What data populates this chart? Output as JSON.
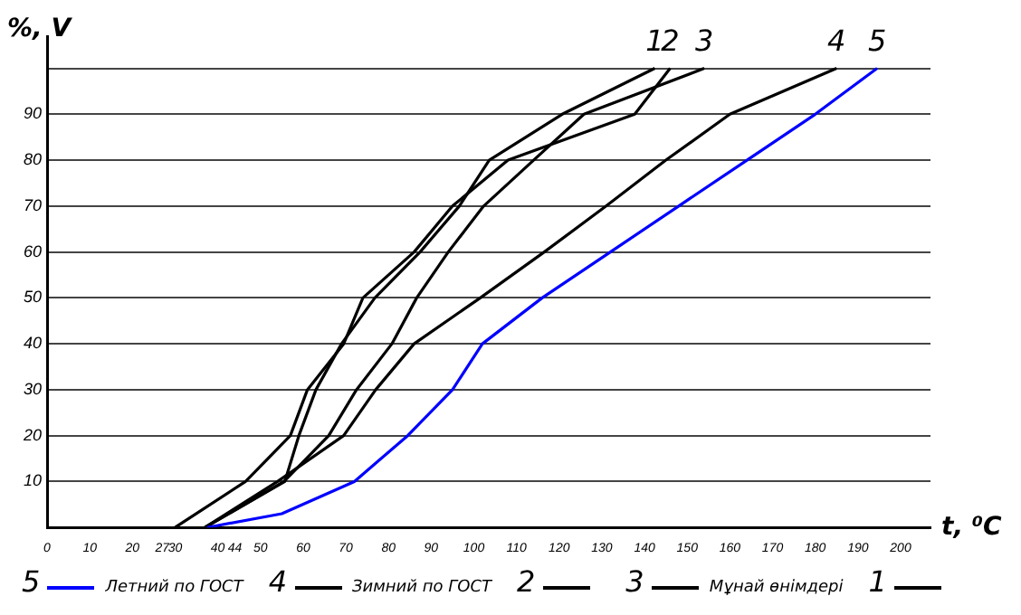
{
  "chart_data": {
    "type": "line",
    "xlabel": "t, ⁰C",
    "ylabel": "%, V",
    "xlim": [
      0,
      207
    ],
    "ylim": [
      0,
      107
    ],
    "xticks": [
      0,
      10,
      20,
      27,
      30,
      40,
      44,
      50,
      60,
      70,
      80,
      90,
      100,
      110,
      120,
      130,
      140,
      150,
      160,
      170,
      180,
      190,
      200
    ],
    "yticks": [
      10,
      20,
      30,
      40,
      50,
      60,
      70,
      80,
      90,
      {
        "value": 100,
        "label": null
      }
    ],
    "grid": "y",
    "legend": "bottom",
    "line_style": "solid",
    "marker": "none",
    "series": [
      {
        "name": "Летний по ГОСТ",
        "color": "#0000ff",
        "x": [
          37.5,
          55,
          72,
          84.5,
          95,
          102,
          116,
          132,
          148,
          164,
          180,
          194.5
        ],
        "values": [
          0,
          3,
          10,
          20,
          30,
          40,
          50,
          60,
          70,
          80,
          90,
          100
        ]
      },
      {
        "name": "Зимний по ГОСТ",
        "color": "#000000",
        "x": [
          37,
          54,
          69.5,
          77,
          86,
          101.5,
          116.5,
          131,
          145,
          160,
          185
        ],
        "values": [
          0,
          10,
          20,
          30,
          40,
          50,
          60,
          70,
          80,
          90,
          100
        ]
      },
      {
        "color": "#000000",
        "x": [
          30,
          46.5,
          57,
          61,
          69.5,
          74,
          86,
          95,
          108,
          137.7,
          146
        ],
        "values": [
          0,
          10,
          20,
          30,
          40,
          50,
          60,
          70,
          80,
          90,
          100
        ]
      },
      {
        "name": "Мұнай өнімдері",
        "color": "#000000",
        "x": [
          37,
          55.5,
          66,
          72.5,
          80.8,
          86.6,
          94,
          102.3,
          114,
          125.8,
          154
        ],
        "values": [
          0,
          10,
          20,
          30,
          40,
          50,
          60,
          70,
          80,
          90,
          100
        ]
      },
      {
        "color": "#000000",
        "x": [
          37,
          55.7,
          59,
          63,
          69,
          76.8,
          87.4,
          96.6,
          103.6,
          120.7,
          142.4
        ],
        "values": [
          0,
          10,
          20,
          30,
          40,
          50,
          60,
          70,
          80,
          90,
          100
        ]
      }
    ],
    "annotations": [
      {
        "text": "5",
        "x": 194.5,
        "y": 100
      },
      {
        "text": "4",
        "x": 185,
        "y": 100
      },
      {
        "text": "2",
        "x": 146,
        "y": 100
      },
      {
        "text": "3",
        "x": 154,
        "y": 100
      },
      {
        "text": "1",
        "x": 142.4,
        "y": 100
      }
    ]
  }
}
